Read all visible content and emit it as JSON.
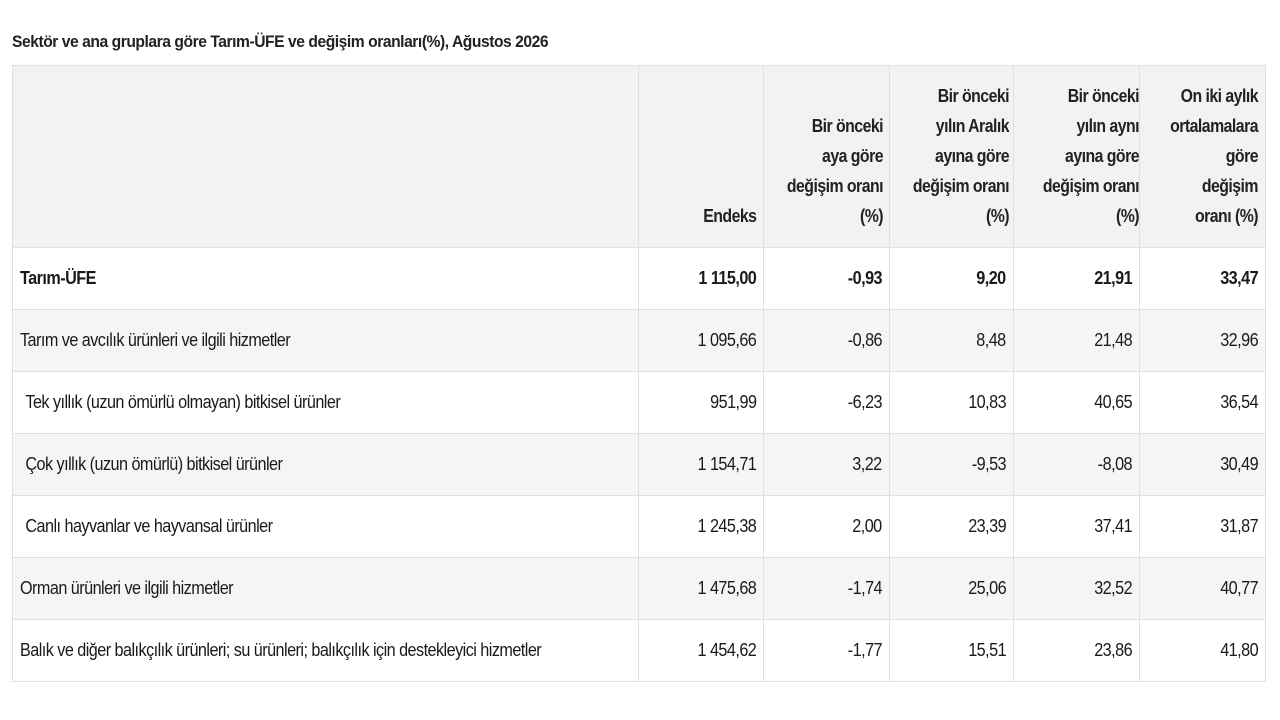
{
  "caption": "Sektör ve ana gruplara göre Tarım-ÜFE ve değişim oranları(%), Ağustos 2026",
  "headers": [
    "",
    "Endeks",
    "Bir önceki aya göre değişim oranı (%)",
    "Bir önceki yılın Aralık ayına göre değişim oranı (%)",
    "Bir önceki yılın aynı ayına göre değişim oranı (%)",
    "On iki aylık ortalamalara göre değişim oranı (%)"
  ],
  "rows": [
    {
      "name": "Tarım-ÜFE",
      "values": [
        "1 115,00",
        "-0,93",
        "9,20",
        "21,91",
        "33,47"
      ]
    },
    {
      "name": "Tarım ve avcılık ürünleri ve ilgili hizmetler",
      "values": [
        "1 095,66",
        "-0,86",
        "8,48",
        "21,48",
        "32,96"
      ]
    },
    {
      "name": "Tek yıllık (uzun ömürlü olmayan) bitkisel ürünler",
      "values": [
        "951,99",
        "-6,23",
        "10,83",
        "40,65",
        "36,54"
      ]
    },
    {
      "name": "Çok yıllık (uzun ömürlü) bitkisel ürünler",
      "values": [
        "1 154,71",
        "3,22",
        "-9,53",
        "-8,08",
        "30,49"
      ]
    },
    {
      "name": "Canlı hayvanlar ve hayvansal ürünler",
      "values": [
        "1 245,38",
        "2,00",
        "23,39",
        "37,41",
        "31,87"
      ]
    },
    {
      "name": "Orman ürünleri ve ilgili hizmetler",
      "values": [
        "1 475,68",
        "-1,74",
        "25,06",
        "32,52",
        "40,77"
      ]
    },
    {
      "name": "Balık ve diğer balıkçılık ürünleri; su ürünleri; balıkçılık için destekleyici hizmetler",
      "values": [
        "1 454,62",
        "-1,77",
        "15,51",
        "23,86",
        "41,80"
      ]
    }
  ]
}
